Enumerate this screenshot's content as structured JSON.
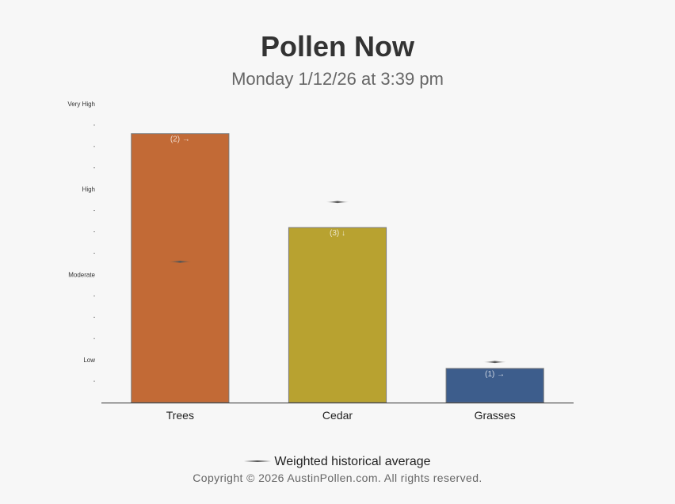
{
  "header": {
    "title": "Pollen Now",
    "subtitle": "Monday 1/12/26 at 3:39 pm"
  },
  "legend": {
    "label": "Weighted historical average"
  },
  "footer": {
    "copyright": "Copyright © 2026 AustinPollen.com.  All rights reserved."
  },
  "chart_data": {
    "type": "bar",
    "categories": [
      "Trees",
      "Cedar",
      "Grasses"
    ],
    "values": [
      12.6,
      8.2,
      1.6
    ],
    "value_labels": [
      "(2) →",
      "(3) ↓",
      "(1) →"
    ],
    "bar_colors": [
      "#c26a36",
      "#b8a230",
      "#3d5d8c"
    ],
    "historical_average": [
      6.6,
      9.4,
      1.9
    ],
    "ylim": [
      0,
      14
    ],
    "y_level_labels": [
      {
        "value": 2,
        "label": "Low"
      },
      {
        "value": 6,
        "label": "Moderate"
      },
      {
        "value": 10,
        "label": "High"
      },
      {
        "value": 14,
        "label": "Very High"
      }
    ],
    "y_minor_ticks": [
      1,
      3,
      4,
      5,
      7,
      8,
      9,
      11,
      12,
      13
    ]
  }
}
